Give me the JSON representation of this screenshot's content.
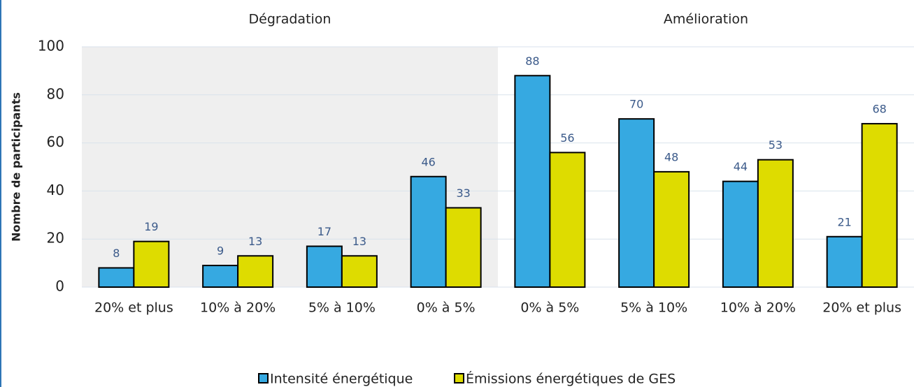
{
  "chart_data": {
    "type": "bar",
    "y_label": "Nombre de participants",
    "groups": [
      {
        "name": "Dégradation",
        "categories": [
          "20% et plus",
          "10% à 20%",
          "5% à 10%",
          "0% à 5%"
        ]
      },
      {
        "name": "Amélioration",
        "categories": [
          "0% à 5%",
          "5% à 10%",
          "10% à 20%",
          "20% et plus"
        ]
      }
    ],
    "series": [
      {
        "name": "Intensité énergétique",
        "color": "#36a9e1",
        "values": [
          8,
          9,
          17,
          46,
          88,
          70,
          44,
          21
        ]
      },
      {
        "name": "Émissions énergétiques de GES",
        "color": "#dedc00",
        "values": [
          19,
          13,
          13,
          33,
          56,
          48,
          53,
          68
        ]
      }
    ],
    "ylim": [
      0,
      100
    ],
    "yticks": [
      0,
      20,
      40,
      60,
      80,
      100
    ],
    "grid": true,
    "legend": "bottom"
  }
}
